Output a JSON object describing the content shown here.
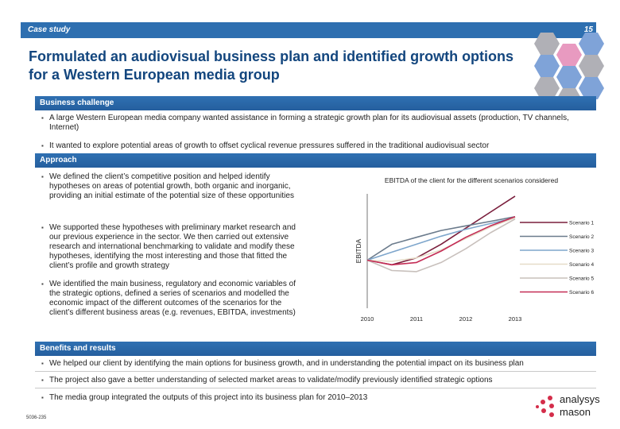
{
  "header": {
    "label": "Case study",
    "page_number": "15"
  },
  "title": "Formulated an audiovisual business plan and identified growth options for a Western European media group",
  "business_challenge": {
    "heading": "Business challenge",
    "bullets": [
      "A large Western European media company wanted assistance in forming a strategic growth plan for its audiovisual assets (production, TV channels, Internet)",
      "It wanted to explore potential areas of growth to offset cyclical revenue pressures suffered in the traditional audiovisual sector"
    ]
  },
  "approach": {
    "heading": "Approach",
    "bullets": [
      "We defined the client’s competitive position and helped identify hypotheses on areas of potential growth, both organic and inorganic, providing an initial estimate of the potential size of these opportunities",
      "We supported these hypotheses with preliminary market research and our previous experience in the sector. We then carried out extensive research and international benchmarking to validate and modify these hypotheses, identifying the most interesting and those that fitted the client’s profile and growth strategy",
      "We identified the main business, regulatory and economic variables of the strategic options, defined a series of scenarios and modelled the economic impact of the different outcomes of the scenarios for the client’s different business areas (e.g. revenues, EBITDA, investments)"
    ]
  },
  "results": {
    "heading": "Benefits and results",
    "bullets": [
      "We helped our client by identifying the main options for business growth, and in understanding the potential impact on its business plan",
      "The project also gave a better understanding of  selected market areas to validate/modify previously identified strategic options",
      "The media group integrated the outputs of this project into its business plan for 2010–2013"
    ]
  },
  "footer": {
    "code": "5036-235"
  },
  "logo": {
    "line1": "analysys",
    "line2": "mason"
  },
  "chart_data": {
    "type": "line",
    "title": "EBITDA of the client for the different scenarios considered",
    "xlabel": "",
    "ylabel": "EBITDA",
    "categories": [
      "2010",
      "2011",
      "2012",
      "2013"
    ],
    "x": [
      2010,
      2010.5,
      2011,
      2011.5,
      2012,
      2012.5,
      2013
    ],
    "ylim": [
      0,
      100
    ],
    "series": [
      {
        "name": "Scenario 1",
        "color": "#7a1e3c",
        "values": [
          42,
          38,
          44,
          56,
          70,
          84,
          98
        ]
      },
      {
        "name": "Scenario 2",
        "color": "#6b7b8c",
        "values": [
          42,
          56,
          62,
          68,
          72,
          76,
          80
        ]
      },
      {
        "name": "Scenario 3",
        "color": "#7ea6cc",
        "values": [
          42,
          49,
          56,
          63,
          69,
          74,
          79
        ]
      },
      {
        "name": "Scenario 4",
        "color": "#e6dcc8",
        "values": [
          42,
          41,
          44,
          51,
          61,
          71,
          79
        ]
      },
      {
        "name": "Scenario 5",
        "color": "#c8c0bc",
        "values": [
          42,
          33,
          32,
          40,
          52,
          66,
          78
        ]
      },
      {
        "name": "Scenario 6",
        "color": "#c42c55",
        "values": [
          42,
          38,
          40,
          50,
          62,
          72,
          80
        ]
      }
    ],
    "grid": false,
    "legend": "right"
  }
}
